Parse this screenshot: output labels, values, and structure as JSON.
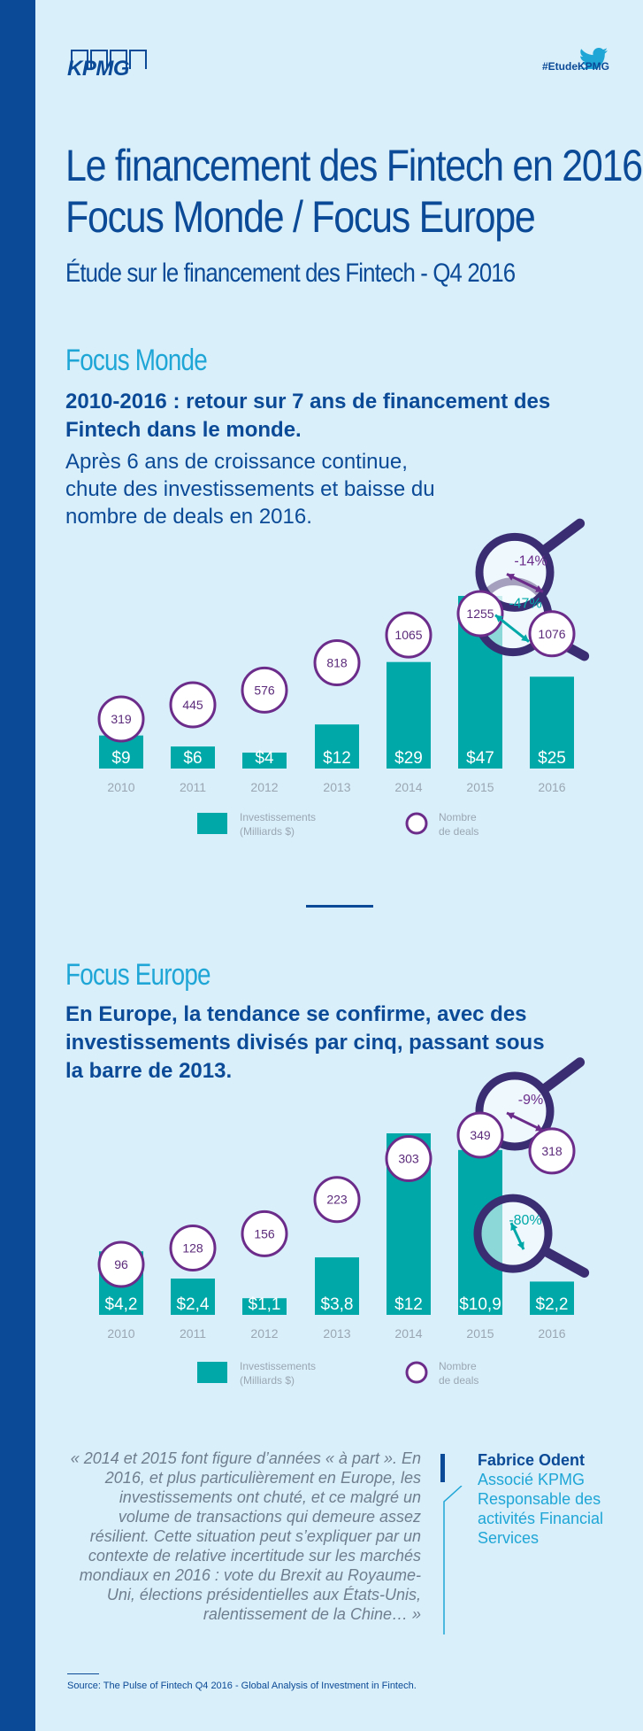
{
  "header": {
    "logo": "KPMG",
    "twitter_tag": "#EtudeKPMG",
    "title_line1": "Le financement des Fintech en 2016",
    "title_line2": "Focus Monde / Focus Europe",
    "subtitle": "Étude sur le financement des Fintech - Q4 2016"
  },
  "monde": {
    "label": "Focus Monde",
    "heading": "2010-2016 : retour sur 7 ans de financement des Fintech dans le monde.",
    "body": "Après 6 ans de croissance continue, chute des investissements et baisse du nombre de deals en 2016.",
    "deals_change": "-14%",
    "invest_change": "-47%"
  },
  "europe": {
    "label": "Focus Europe",
    "heading": "En Europe, la tendance se confirme, avec des investissements divisés par cinq, passant sous la barre de 2013.",
    "deals_change": "-9%",
    "invest_change": "-80%"
  },
  "legend": {
    "investments": "Investissements",
    "investments_unit": "(Milliards $)",
    "deals_line1": "Nombre",
    "deals_line2": "de deals"
  },
  "colors": {
    "bar": "#00a8a8",
    "deal_circle": "#6b2c8a",
    "magnifier": "#3a2d72",
    "arrow_teal": "#00a8a8",
    "arrow_purple": "#6b2c8a",
    "axis_label": "#9aa7b3"
  },
  "chart_data": [
    {
      "type": "bar",
      "categories": [
        "2010",
        "2011",
        "2012",
        "2013",
        "2014",
        "2015",
        "2016"
      ],
      "series": [
        {
          "name": "Investissements (Milliards $)",
          "values": [
            9,
            6,
            4,
            12,
            29,
            47,
            25
          ],
          "labels": [
            "$9",
            "$6",
            "$4",
            "$12",
            "$29",
            "$47",
            "$25"
          ]
        },
        {
          "name": "Nombre de deals",
          "values": [
            319,
            445,
            576,
            818,
            1065,
            1255,
            1076
          ]
        }
      ],
      "title": "Focus Monde",
      "annotations": [
        "-14%",
        "-47%"
      ]
    },
    {
      "type": "bar",
      "categories": [
        "2010",
        "2011",
        "2012",
        "2013",
        "2014",
        "2015",
        "2016"
      ],
      "series": [
        {
          "name": "Investissements (Milliards $)",
          "values": [
            4.2,
            2.4,
            1.1,
            3.8,
            12,
            10.9,
            2.2
          ],
          "labels": [
            "$4,2",
            "$2,4",
            "$1,1",
            "$3,8",
            "$12",
            "$10,9",
            "$2,2"
          ]
        },
        {
          "name": "Nombre de deals",
          "values": [
            96,
            128,
            156,
            223,
            303,
            349,
            318
          ]
        }
      ],
      "title": "Focus Europe",
      "annotations": [
        "-9%",
        "-80%"
      ]
    }
  ],
  "quote": {
    "text": "« 2014 et 2015 font figure d’années « à part ». En 2016, et plus particulièrement en Europe, les investissements ont chuté, et ce malgré un volume de transactions qui demeure assez résilient. Cette situation peut s’expliquer par un contexte de relative incertitude sur les marchés mondiaux en 2016 : vote du Brexit au Royaume-Uni, élections présidentielles aux États-Unis, ralentissement de la Chine… »",
    "author_name": "Fabrice Odent",
    "author_role1": "Associé KPMG",
    "author_role2": "Responsable des",
    "author_role3": "activités Financial",
    "author_role4": "Services"
  },
  "source": "Source: The Pulse of Fintech Q4 2016 - Global Analysis of Investment in Fintech."
}
